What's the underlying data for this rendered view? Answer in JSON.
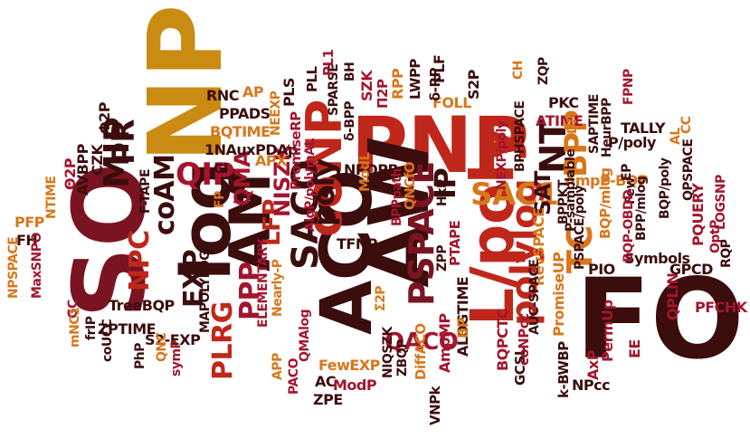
{
  "palette": {
    "dark": "#3b0d0d",
    "red": "#c0271b",
    "orange": "#d9761a",
    "gold": "#c98b12",
    "maroon": "#7a1422",
    "crimson": "#a3152e"
  },
  "words": [
    {
      "text": "PNP",
      "color": "red"
    },
    {
      "text": "NP",
      "color": "gold"
    },
    {
      "text": "SO",
      "color": "maroon"
    },
    {
      "text": "FO",
      "color": "dark"
    },
    {
      "text": "AW",
      "color": "dark"
    },
    {
      "text": "ACO",
      "color": "dark"
    },
    {
      "text": "L/poly",
      "color": "red"
    },
    {
      "text": "log",
      "color": "dark"
    },
    {
      "text": "coNP",
      "color": "red"
    },
    {
      "text": "AM",
      "color": "dark"
    },
    {
      "text": "PSPACE",
      "color": "maroon"
    },
    {
      "text": "polylog",
      "color": "red"
    },
    {
      "text": "SAC1",
      "color": "orange"
    },
    {
      "text": "SAT",
      "color": "dark"
    },
    {
      "text": "NT",
      "color": "dark"
    },
    {
      "text": "BPP",
      "color": "orange"
    },
    {
      "text": "IP",
      "color": "dark"
    },
    {
      "text": "SACO",
      "color": "dark"
    },
    {
      "text": "poly",
      "color": "dark"
    },
    {
      "text": "PLRG",
      "color": "red"
    },
    {
      "text": "PPP",
      "color": "crimson"
    },
    {
      "text": "LFP",
      "color": "red"
    },
    {
      "text": "NISZK",
      "color": "crimson"
    },
    {
      "text": "QMA",
      "color": "crimson"
    },
    {
      "text": "QIP",
      "color": "crimson"
    },
    {
      "text": "coAM",
      "color": "dark"
    },
    {
      "text": "EXP",
      "color": "dark"
    },
    {
      "text": "MIP",
      "color": "dark"
    },
    {
      "text": "PR",
      "color": "dark"
    },
    {
      "text": "NPC",
      "color": "red"
    },
    {
      "text": "QACO",
      "color": "crimson"
    },
    {
      "text": "TC",
      "color": "orange"
    },
    {
      "text": "RNC",
      "color": "dark"
    },
    {
      "text": "AP",
      "color": "orange"
    },
    {
      "text": "PPADS",
      "color": "dark"
    },
    {
      "text": "BQTIME",
      "color": "orange"
    },
    {
      "text": "1NAuxPDAp",
      "color": "dark"
    },
    {
      "text": "APX",
      "color": "orange"
    },
    {
      "text": "PLS",
      "color": "dark"
    },
    {
      "text": "PromiseRP",
      "color": "crimson"
    },
    {
      "text": "AlgP/polymAL",
      "color": "crimson"
    },
    {
      "text": "SPARSE",
      "color": "dark"
    },
    {
      "text": "δ-BPP",
      "color": "dark"
    },
    {
      "text": "BH",
      "color": "dark"
    },
    {
      "text": "SZK",
      "color": "crimson"
    },
    {
      "text": "Π2P",
      "color": "crimson"
    },
    {
      "text": "RPP",
      "color": "orange"
    },
    {
      "text": "NPOPB",
      "color": "dark"
    },
    {
      "text": "FOLL",
      "color": "orange"
    },
    {
      "text": "LWPP",
      "color": "dark"
    },
    {
      "text": "δ-RP",
      "color": "dark"
    },
    {
      "text": "PLF",
      "color": "dark"
    },
    {
      "text": "S2P",
      "color": "dark"
    },
    {
      "text": "NEXP/poly",
      "color": "crimson"
    },
    {
      "text": "BPHSPACE",
      "color": "dark"
    },
    {
      "text": "CH",
      "color": "orange"
    },
    {
      "text": "ZQP",
      "color": "dark"
    },
    {
      "text": "PKC",
      "color": "dark"
    },
    {
      "text": "ATIME",
      "color": "crimson"
    },
    {
      "text": "DP",
      "color": "orange"
    },
    {
      "text": "SAPTIME",
      "color": "dark"
    },
    {
      "text": "HeurBPP",
      "color": "dark"
    },
    {
      "text": "FPNP",
      "color": "crimson"
    },
    {
      "text": "TALLY",
      "color": "dark"
    },
    {
      "text": "P/poly",
      "color": "dark"
    },
    {
      "text": "AL",
      "color": "orange"
    },
    {
      "text": "CC",
      "color": "orange"
    },
    {
      "text": "AmpP-BQP",
      "color": "orange"
    },
    {
      "text": "EP",
      "color": "dark"
    },
    {
      "text": "BQP/poly",
      "color": "dark"
    },
    {
      "text": "QPSPACE",
      "color": "dark"
    },
    {
      "text": "PQUERY",
      "color": "crimson"
    },
    {
      "text": "BQP/mlog",
      "color": "orange"
    },
    {
      "text": "Few",
      "color": "dark"
    },
    {
      "text": "BPP/mlog",
      "color": "dark"
    },
    {
      "text": "LOGSNP",
      "color": "crimson"
    },
    {
      "text": "Symbols",
      "color": "dark"
    },
    {
      "text": "OptP",
      "color": "crimson"
    },
    {
      "text": "RQP",
      "color": "dark"
    },
    {
      "text": "PFCHK",
      "color": "crimson"
    },
    {
      "text": "QPLIN",
      "color": "crimson"
    },
    {
      "text": "GPCD",
      "color": "dark"
    },
    {
      "text": "BQP-OBDD",
      "color": "crimson"
    },
    {
      "text": "PSPACE/poly",
      "color": "dark"
    },
    {
      "text": "P-samplable",
      "color": "dark"
    },
    {
      "text": "BPPKT",
      "color": "dark"
    },
    {
      "text": "PIO",
      "color": "dark"
    },
    {
      "text": "RevSPACE",
      "color": "orange"
    },
    {
      "text": "PromiseUP",
      "color": "orange"
    },
    {
      "text": "NPcc",
      "color": "dark"
    },
    {
      "text": "k-BWBP",
      "color": "dark"
    },
    {
      "text": "PermUp",
      "color": "crimson"
    },
    {
      "text": "AxP",
      "color": "crimson"
    },
    {
      "text": "EE",
      "color": "crimson"
    },
    {
      "text": "GCSL",
      "color": "dark"
    },
    {
      "text": "AUC-SPACE",
      "color": "dark"
    },
    {
      "text": "coNPcc",
      "color": "crimson"
    },
    {
      "text": "BQPCTC",
      "color": "crimson"
    },
    {
      "text": "ALOGTIME",
      "color": "dark"
    },
    {
      "text": "BP",
      "color": "orange"
    },
    {
      "text": "AmpMP",
      "color": "crimson"
    },
    {
      "text": "DiffACO",
      "color": "orange"
    },
    {
      "text": "VNPk",
      "color": "dark"
    },
    {
      "text": "PTAPE",
      "color": "crimson"
    },
    {
      "text": "ZPP",
      "color": "dark"
    },
    {
      "text": "HkP",
      "color": "dark"
    },
    {
      "text": "BPPpath",
      "color": "crimson"
    },
    {
      "text": "QNCfO",
      "color": "orange"
    },
    {
      "text": "TFNP",
      "color": "dark"
    },
    {
      "text": "ModL",
      "color": "orange"
    },
    {
      "text": "PLL",
      "color": "dark"
    },
    {
      "text": "PL1",
      "color": "crimson"
    },
    {
      "text": "NIQSZK",
      "color": "dark"
    },
    {
      "text": "ZBQP",
      "color": "dark"
    },
    {
      "text": "FewEXP",
      "color": "orange"
    },
    {
      "text": "QMAlog",
      "color": "crimson"
    },
    {
      "text": "AC",
      "color": "dark"
    },
    {
      "text": "ZPE",
      "color": "dark"
    },
    {
      "text": "ModP",
      "color": "crimson"
    },
    {
      "text": "Σ2P",
      "color": "orange"
    },
    {
      "text": "Nearly-P",
      "color": "orange"
    },
    {
      "text": "PACO",
      "color": "crimson"
    },
    {
      "text": "APP",
      "color": "orange"
    },
    {
      "text": "ELEMENTARY",
      "color": "crimson"
    },
    {
      "text": "MAPOLYLOG",
      "color": "dark"
    },
    {
      "text": "TreeBQP",
      "color": "dark"
    },
    {
      "text": "ZPTIME",
      "color": "dark"
    },
    {
      "text": "S2-EXP",
      "color": "dark"
    },
    {
      "text": "GI",
      "color": "dark"
    },
    {
      "text": "FP",
      "color": "orange"
    },
    {
      "text": "NEEXP",
      "color": "orange"
    },
    {
      "text": "Φ2P",
      "color": "dark"
    },
    {
      "text": "F-TAPE",
      "color": "dark"
    },
    {
      "text": "CZK",
      "color": "dark"
    },
    {
      "text": "AVBPP",
      "color": "dark"
    },
    {
      "text": "Θ2P",
      "color": "crimson"
    },
    {
      "text": "NTIME",
      "color": "orange"
    },
    {
      "text": "PFP",
      "color": "orange"
    },
    {
      "text": "FH",
      "color": "dark"
    },
    {
      "text": "NPSPACE",
      "color": "orange"
    },
    {
      "text": "MaxSNPO",
      "color": "crimson"
    },
    {
      "text": "GC",
      "color": "crimson"
    },
    {
      "text": "mNC1",
      "color": "orange"
    },
    {
      "text": "frIP",
      "color": "dark"
    },
    {
      "text": "coUCC",
      "color": "dark"
    },
    {
      "text": "PhP",
      "color": "dark"
    },
    {
      "text": "QNC",
      "color": "orange"
    },
    {
      "text": "symP",
      "color": "crimson"
    }
  ]
}
